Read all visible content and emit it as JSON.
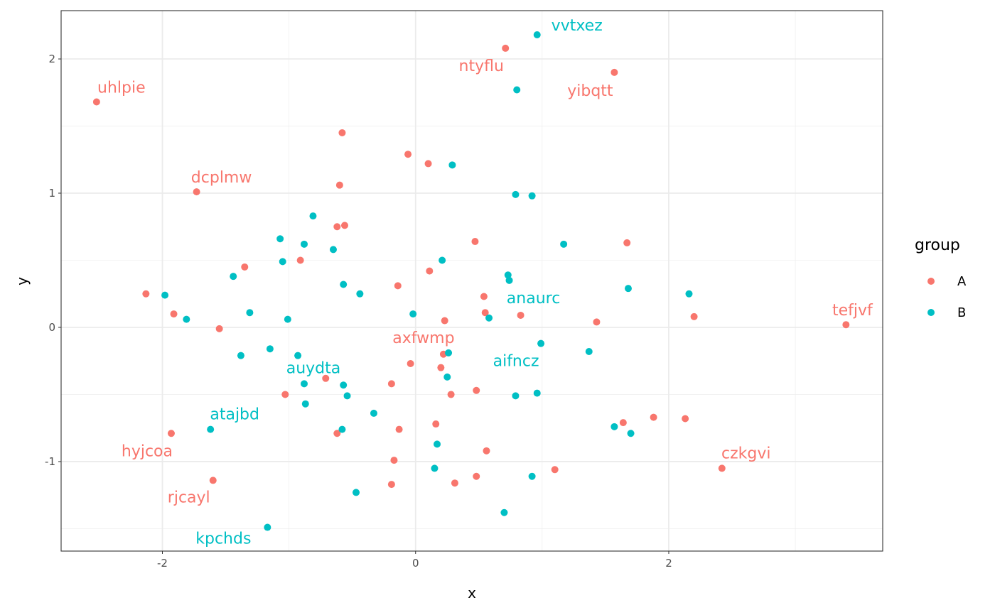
{
  "chart_data": {
    "type": "scatter",
    "xlabel": "x",
    "ylabel": "y",
    "xlim": [
      -2.8,
      3.69
    ],
    "ylim": [
      -1.667,
      2.36
    ],
    "x_ticks": [
      -2,
      0,
      2
    ],
    "y_ticks": [
      -1,
      0,
      1,
      2
    ],
    "x_tick_labels": [
      "-2",
      "0",
      "2"
    ],
    "y_tick_labels": [
      "-1",
      "0",
      "1",
      "2"
    ],
    "grid": true,
    "legend": {
      "title": "group",
      "placement": "right",
      "entries": [
        "A",
        "B"
      ]
    },
    "colors": {
      "A": "#F8766D",
      "B": "#00BFC4"
    },
    "series": [
      {
        "name": "A",
        "points": [
          {
            "x": -2.52,
            "y": 1.68,
            "label": "uhlpie"
          },
          {
            "x": -1.73,
            "y": 1.01,
            "label": "dcplmw"
          },
          {
            "x": -2.13,
            "y": 0.25
          },
          {
            "x": -1.91,
            "y": 0.1
          },
          {
            "x": -1.55,
            "y": -0.01
          },
          {
            "x": -1.35,
            "y": 0.45
          },
          {
            "x": -0.91,
            "y": 0.5
          },
          {
            "x": -1.03,
            "y": -0.5
          },
          {
            "x": -1.93,
            "y": -0.79,
            "label": "hyjcoa"
          },
          {
            "x": -1.6,
            "y": -1.14,
            "label": "rjcayl"
          },
          {
            "x": -0.71,
            "y": -0.38
          },
          {
            "x": -0.62,
            "y": 0.75
          },
          {
            "x": -0.56,
            "y": 0.76
          },
          {
            "x": -0.6,
            "y": 1.06
          },
          {
            "x": -0.58,
            "y": 1.45
          },
          {
            "x": -0.62,
            "y": -0.79
          },
          {
            "x": -0.06,
            "y": 1.29
          },
          {
            "x": 0.1,
            "y": 1.22
          },
          {
            "x": -0.14,
            "y": 0.31
          },
          {
            "x": 0.11,
            "y": 0.42
          },
          {
            "x": -0.04,
            "y": -0.27
          },
          {
            "x": -0.19,
            "y": -0.42
          },
          {
            "x": -0.13,
            "y": -0.76
          },
          {
            "x": -0.17,
            "y": -0.99
          },
          {
            "x": -0.19,
            "y": -1.17
          },
          {
            "x": 0.2,
            "y": -0.3
          },
          {
            "x": 0.22,
            "y": -0.2,
            "label": "axfwmp"
          },
          {
            "x": 0.23,
            "y": 0.05
          },
          {
            "x": 0.28,
            "y": -0.5
          },
          {
            "x": 0.16,
            "y": -0.72
          },
          {
            "x": 0.31,
            "y": -1.16
          },
          {
            "x": 0.48,
            "y": -0.47
          },
          {
            "x": 0.48,
            "y": -1.11
          },
          {
            "x": 0.56,
            "y": -0.92
          },
          {
            "x": 0.47,
            "y": 0.64
          },
          {
            "x": 0.54,
            "y": 0.23
          },
          {
            "x": 0.55,
            "y": 0.11
          },
          {
            "x": 0.83,
            "y": 0.09
          },
          {
            "x": 0.71,
            "y": 2.08,
            "label": "ntyflu"
          },
          {
            "x": 1.57,
            "y": 1.9,
            "label": "yibqtt"
          },
          {
            "x": 1.67,
            "y": 0.63
          },
          {
            "x": 1.43,
            "y": 0.04
          },
          {
            "x": 1.1,
            "y": -1.06
          },
          {
            "x": 1.64,
            "y": -0.71
          },
          {
            "x": 1.88,
            "y": -0.67
          },
          {
            "x": 2.13,
            "y": -0.68
          },
          {
            "x": 2.2,
            "y": 0.08
          },
          {
            "x": 2.42,
            "y": -1.05,
            "label": "czkgvi"
          },
          {
            "x": 3.4,
            "y": 0.02,
            "label": "tefjvf"
          }
        ]
      },
      {
        "name": "B",
        "points": [
          {
            "x": 0.96,
            "y": 2.18,
            "label": "vvtxez"
          },
          {
            "x": 0.8,
            "y": 1.77
          },
          {
            "x": 0.29,
            "y": 1.21
          },
          {
            "x": 0.79,
            "y": 0.99
          },
          {
            "x": 0.92,
            "y": 0.98
          },
          {
            "x": 1.17,
            "y": 0.62
          },
          {
            "x": -0.81,
            "y": 0.83
          },
          {
            "x": -1.07,
            "y": 0.66
          },
          {
            "x": -0.88,
            "y": 0.62
          },
          {
            "x": -0.65,
            "y": 0.58
          },
          {
            "x": -1.05,
            "y": 0.49
          },
          {
            "x": -1.44,
            "y": 0.38
          },
          {
            "x": -1.98,
            "y": 0.24
          },
          {
            "x": -1.81,
            "y": 0.06
          },
          {
            "x": -1.31,
            "y": 0.11
          },
          {
            "x": -1.01,
            "y": 0.06
          },
          {
            "x": -0.57,
            "y": 0.32
          },
          {
            "x": -0.44,
            "y": 0.25
          },
          {
            "x": -0.02,
            "y": 0.1
          },
          {
            "x": 0.21,
            "y": 0.5
          },
          {
            "x": 0.73,
            "y": 0.39
          },
          {
            "x": 0.74,
            "y": 0.35,
            "label": "anaurc"
          },
          {
            "x": 0.58,
            "y": 0.07
          },
          {
            "x": 1.68,
            "y": 0.29
          },
          {
            "x": 2.16,
            "y": 0.25
          },
          {
            "x": -1.38,
            "y": -0.21
          },
          {
            "x": -1.15,
            "y": -0.16
          },
          {
            "x": -0.93,
            "y": -0.21
          },
          {
            "x": -0.88,
            "y": -0.42,
            "label": "auydta"
          },
          {
            "x": -0.87,
            "y": -0.57
          },
          {
            "x": -0.57,
            "y": -0.43
          },
          {
            "x": -0.54,
            "y": -0.51
          },
          {
            "x": 0.26,
            "y": -0.19
          },
          {
            "x": 0.25,
            "y": -0.37
          },
          {
            "x": 0.99,
            "y": -0.12,
            "label": "aifncz"
          },
          {
            "x": 1.37,
            "y": -0.18
          },
          {
            "x": 0.96,
            "y": -0.49
          },
          {
            "x": 0.79,
            "y": -0.51
          },
          {
            "x": -0.33,
            "y": -0.64
          },
          {
            "x": -0.58,
            "y": -0.76
          },
          {
            "x": -1.62,
            "y": -0.76,
            "label": "atajbd"
          },
          {
            "x": 0.17,
            "y": -0.87
          },
          {
            "x": 0.15,
            "y": -1.05
          },
          {
            "x": -0.47,
            "y": -1.23
          },
          {
            "x": 0.7,
            "y": -1.38
          },
          {
            "x": 0.92,
            "y": -1.11
          },
          {
            "x": -1.17,
            "y": -1.49,
            "label": "kpchds"
          },
          {
            "x": 1.57,
            "y": -0.74
          },
          {
            "x": 1.7,
            "y": -0.79
          }
        ]
      }
    ]
  }
}
